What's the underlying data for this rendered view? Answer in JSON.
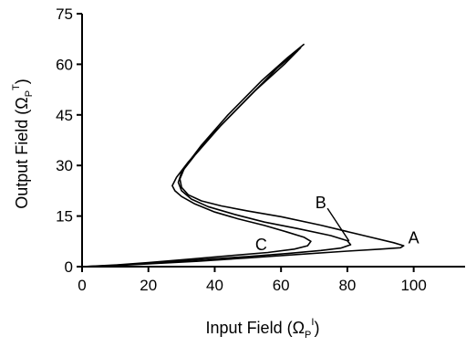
{
  "chart_data": {
    "type": "line",
    "xlabel": "Input Field (Ω",
    "xlabel_sub": "P",
    "xlabel_sup": "I",
    "xlabel_close": ")",
    "ylabel": "Output Field (Ω",
    "ylabel_sub": "P",
    "ylabel_sup": "T",
    "ylabel_close": ")",
    "xlim": [
      0,
      110
    ],
    "ylim": [
      0,
      75
    ],
    "xticks": [
      0,
      20,
      40,
      60,
      80,
      100
    ],
    "yticks": [
      0,
      15,
      30,
      45,
      60,
      75
    ],
    "grid": false,
    "series": [
      {
        "name": "A",
        "x": [
          0,
          10,
          20,
          35,
          50,
          65,
          80,
          90,
          96,
          97,
          94,
          85,
          72,
          60,
          50,
          42,
          36,
          32,
          30,
          29.5,
          31,
          36,
          44,
          54,
          62,
          67
        ],
        "y": [
          0,
          0.3,
          0.8,
          1.6,
          2.6,
          3.6,
          4.6,
          5.2,
          5.6,
          6.2,
          7.1,
          9.2,
          12.3,
          14.8,
          16.5,
          18.0,
          19.5,
          21.3,
          23.5,
          26,
          29.5,
          36,
          45,
          55,
          62,
          66
        ]
      },
      {
        "name": "B",
        "x": [
          0,
          10,
          20,
          35,
          50,
          62,
          72,
          78,
          81,
          80,
          75,
          65,
          55,
          46,
          38,
          33,
          30,
          29,
          30,
          34,
          42,
          52,
          61,
          66
        ],
        "y": [
          0,
          0.4,
          1.0,
          2.0,
          3.0,
          3.9,
          4.8,
          5.5,
          6.5,
          7.7,
          9.2,
          11.3,
          13.2,
          15.5,
          17.8,
          20.0,
          22.5,
          25,
          28,
          33,
          42,
          52,
          60,
          65
        ]
      },
      {
        "name": "C",
        "x": [
          0,
          10,
          20,
          32,
          44,
          56,
          64,
          68,
          69,
          67,
          62,
          55,
          47,
          40,
          34,
          30,
          28,
          27.2,
          28.5,
          32,
          40,
          50,
          59,
          65
        ],
        "y": [
          0,
          0.5,
          1.2,
          2.2,
          3.2,
          4.2,
          5.2,
          6.2,
          7.5,
          8.7,
          10.2,
          12.2,
          14.2,
          16.2,
          18.6,
          20.8,
          22.5,
          24,
          26.5,
          31,
          40,
          50,
          59,
          64
        ]
      }
    ],
    "annotations": [
      {
        "text": "A",
        "x": 100,
        "y": 8.5
      },
      {
        "text": "B",
        "x": 72,
        "y": 19
      },
      {
        "text": "C",
        "x": 54,
        "y": 6.5
      }
    ]
  }
}
